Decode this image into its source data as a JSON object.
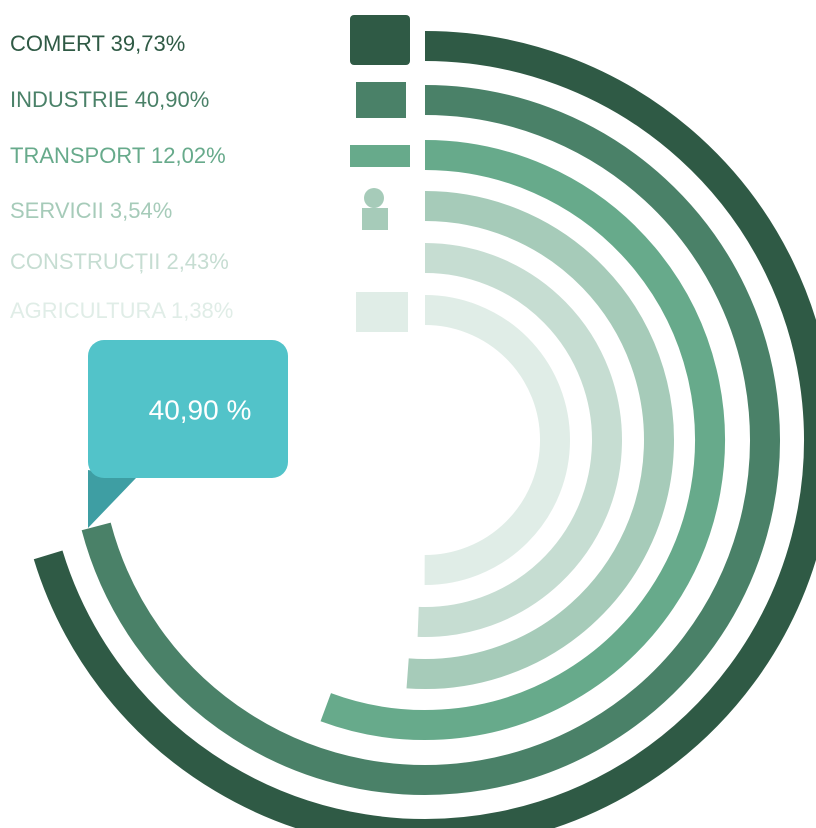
{
  "chart_data": {
    "type": "radial_bar",
    "categories": [
      "COMERT",
      "INDUSTRIE",
      "TRANSPORT",
      "SERVICII",
      "CONSTRUCȚII",
      "AGRICULTURA"
    ],
    "values": [
      39.73,
      40.9,
      12.02,
      3.54,
      2.43,
      1.38
    ],
    "value_labels": [
      "39,73%",
      "40,90%",
      "12,02%",
      "3,54%",
      "2,43%",
      "1,38%"
    ],
    "colors": [
      "#2f5a45",
      "#4a8168",
      "#67aa8b",
      "#a6cbb9",
      "#c6ddd2",
      "#e0ede7"
    ],
    "xlim": [
      -93.4,
      96
    ],
    "annotation": "40,90 %"
  }
}
